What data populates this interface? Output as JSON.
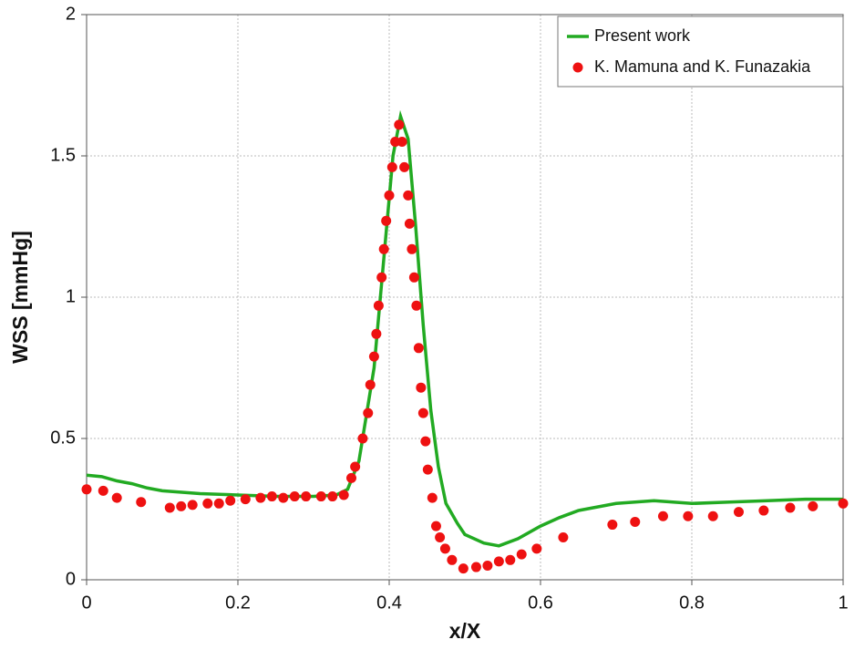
{
  "chart_data": {
    "type": "line",
    "xlabel": "x/X",
    "ylabel": "WSS [mmHg]",
    "xlim": [
      0,
      1
    ],
    "ylim": [
      0,
      2
    ],
    "xticks": [
      0,
      0.2,
      0.4,
      0.6,
      0.8,
      1
    ],
    "yticks": [
      0,
      0.5,
      1,
      1.5,
      2
    ],
    "grid": true,
    "legend": "upper right",
    "series": [
      {
        "name": "Present work",
        "color": "#22aa22",
        "style": "line",
        "x": [
          0,
          0.02,
          0.04,
          0.06,
          0.08,
          0.1,
          0.15,
          0.2,
          0.25,
          0.3,
          0.33,
          0.345,
          0.36,
          0.38,
          0.395,
          0.405,
          0.415,
          0.425,
          0.435,
          0.445,
          0.455,
          0.465,
          0.475,
          0.49,
          0.5,
          0.525,
          0.545,
          0.57,
          0.6,
          0.625,
          0.65,
          0.7,
          0.75,
          0.8,
          0.85,
          0.9,
          0.95,
          1.0
        ],
        "values": [
          0.37,
          0.365,
          0.35,
          0.34,
          0.325,
          0.315,
          0.305,
          0.3,
          0.295,
          0.295,
          0.3,
          0.32,
          0.42,
          0.75,
          1.2,
          1.5,
          1.64,
          1.56,
          1.25,
          0.9,
          0.6,
          0.4,
          0.27,
          0.2,
          0.16,
          0.13,
          0.12,
          0.145,
          0.19,
          0.22,
          0.245,
          0.27,
          0.28,
          0.27,
          0.275,
          0.28,
          0.285,
          0.285
        ]
      },
      {
        "name": "K. Mamuna and K. Funazakia",
        "color": "#ee1111",
        "style": "markers",
        "x": [
          0,
          0.022,
          0.04,
          0.072,
          0.11,
          0.125,
          0.14,
          0.16,
          0.175,
          0.19,
          0.21,
          0.23,
          0.245,
          0.26,
          0.275,
          0.29,
          0.31,
          0.325,
          0.34,
          0.35,
          0.355,
          0.365,
          0.372,
          0.375,
          0.38,
          0.383,
          0.386,
          0.39,
          0.393,
          0.396,
          0.4,
          0.404,
          0.408,
          0.413,
          0.417,
          0.42,
          0.425,
          0.427,
          0.43,
          0.433,
          0.436,
          0.439,
          0.442,
          0.445,
          0.448,
          0.451,
          0.457,
          0.462,
          0.467,
          0.474,
          0.483,
          0.498,
          0.515,
          0.53,
          0.545,
          0.56,
          0.575,
          0.595,
          0.63,
          0.695,
          0.725,
          0.762,
          0.795,
          0.828,
          0.862,
          0.895,
          0.93,
          0.96,
          1.0
        ],
        "values": [
          0.32,
          0.315,
          0.29,
          0.275,
          0.255,
          0.26,
          0.265,
          0.27,
          0.27,
          0.28,
          0.285,
          0.29,
          0.295,
          0.29,
          0.295,
          0.295,
          0.295,
          0.295,
          0.3,
          0.36,
          0.4,
          0.5,
          0.59,
          0.69,
          0.79,
          0.87,
          0.97,
          1.07,
          1.17,
          1.27,
          1.36,
          1.46,
          1.55,
          1.61,
          1.55,
          1.46,
          1.36,
          1.26,
          1.17,
          1.07,
          0.97,
          0.82,
          0.68,
          0.59,
          0.49,
          0.39,
          0.29,
          0.19,
          0.15,
          0.11,
          0.07,
          0.04,
          0.045,
          0.05,
          0.065,
          0.07,
          0.09,
          0.11,
          0.15,
          0.195,
          0.205,
          0.225,
          0.225,
          0.225,
          0.24,
          0.245,
          0.255,
          0.26,
          0.27
        ]
      }
    ]
  }
}
